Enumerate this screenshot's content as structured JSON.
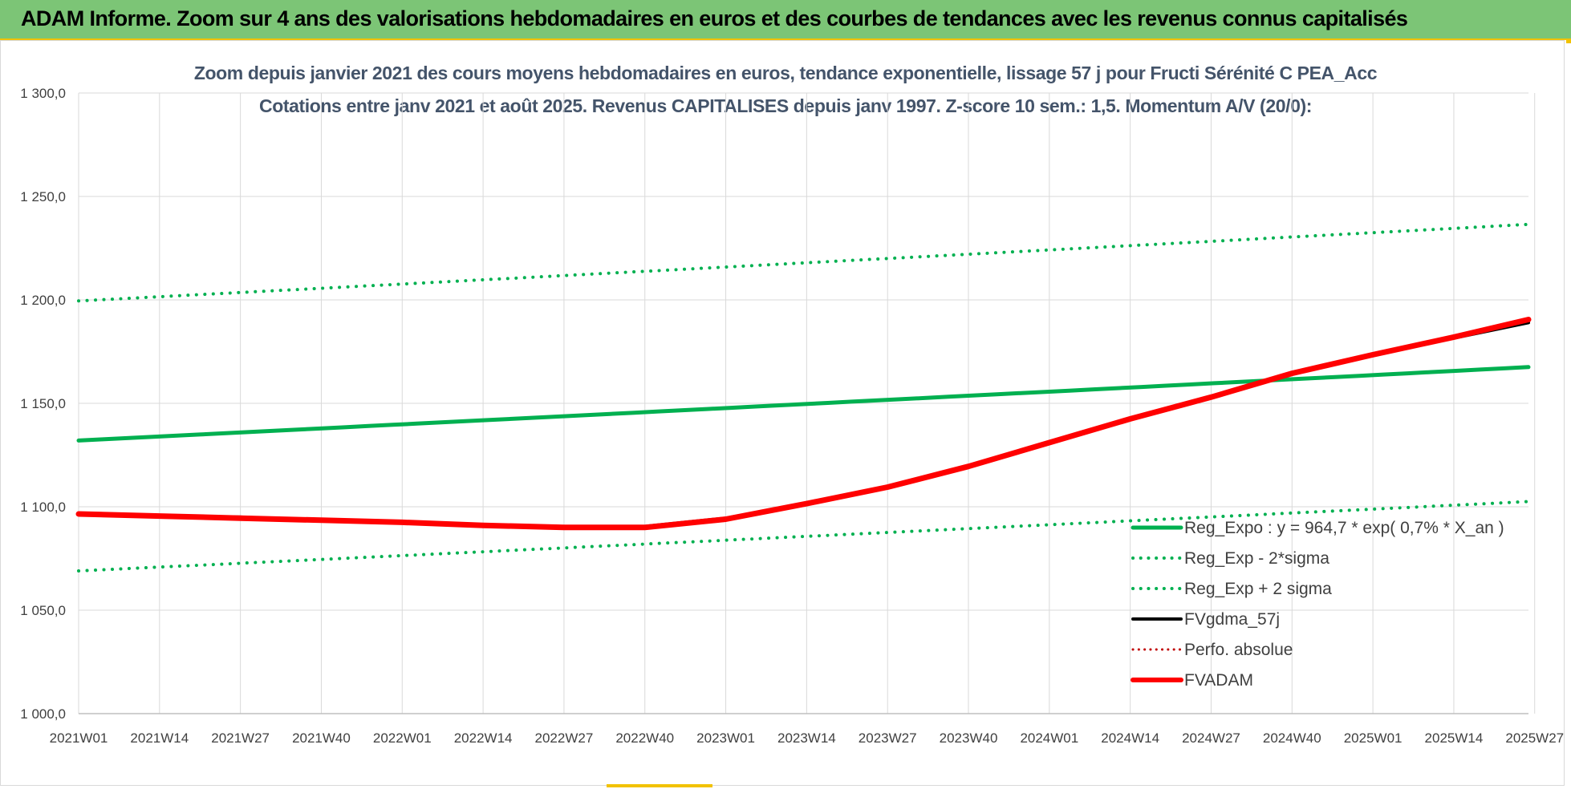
{
  "banner": {
    "text": "ADAM Informe. Zoom sur 4 ans des valorisations hebdomadaires en euros et des courbes de tendances avec les revenus connus capitalisés"
  },
  "colors": {
    "banner_bg": "#7cc576",
    "green": "#00b050",
    "red": "#ff0000",
    "black": "#000000",
    "dotted_red": "#c00000",
    "grid": "#d9d9d9",
    "title": "#44546a"
  },
  "chart_data": {
    "type": "line",
    "title": "Zoom depuis janvier 2021 des cours moyens hebdomadaires en euros, tendance exponentielle, lissage 57 j pour Fructi Sérénité C PEA_Acc",
    "subtitle": "Cotations entre janv 2021 et août 2025. Revenus CAPITALISES depuis janv 1997. Z-score 10 sem.: 1,5. Momentum A/V (20/0):",
    "x_tick_labels": [
      "2021W01",
      "2021W14",
      "2021W27",
      "2021W40",
      "2022W01",
      "2022W14",
      "2022W27",
      "2022W40",
      "2023W01",
      "2023W14",
      "2023W27",
      "2023W40",
      "2024W01",
      "2024W14",
      "2024W27",
      "2024W40",
      "2025W01",
      "2025W14",
      "2025W27"
    ],
    "y_tick_labels": [
      "1 000,0",
      "1 050,0",
      "1 100,0",
      "1 150,0",
      "1 200,0",
      "1 250,0",
      "1 300,0"
    ],
    "ylim": [
      1000,
      1300
    ],
    "x_range_weeks": [
      0,
      233
    ],
    "grid": true,
    "legend_position": "bottom-right",
    "series": [
      {
        "name": "Reg_Expo : y = 964,7 * exp( 0,7% *  X_an )",
        "color": "#00b050",
        "style": "solid",
        "width": 5,
        "x": [
          0,
          233
        ],
        "y": [
          1132.0,
          1167.5
        ]
      },
      {
        "name": "Reg_Exp - 2*sigma",
        "color": "#00b050",
        "style": "dotted",
        "width": 4,
        "x": [
          0,
          233
        ],
        "y": [
          1069.0,
          1102.5
        ]
      },
      {
        "name": "Reg_Exp + 2 sigma",
        "color": "#00b050",
        "style": "dotted",
        "width": 4,
        "x": [
          0,
          233
        ],
        "y": [
          1199.5,
          1236.5
        ]
      },
      {
        "name": "FVgdma_57j",
        "color": "#000000",
        "style": "solid",
        "width": 4,
        "x": [
          0,
          13,
          26,
          39,
          52,
          65,
          78,
          91,
          104,
          117,
          130,
          143,
          156,
          169,
          182,
          195,
          208,
          221,
          233
        ],
        "y": [
          1096.5,
          1095.5,
          1095.0,
          1093.5,
          1092.5,
          1091.0,
          1090.0,
          1090.5,
          1094.5,
          1101.5,
          1109.5,
          1119.5,
          1131.0,
          1142.5,
          1153.0,
          1164.5,
          1173.5,
          1181.5,
          1189.0
        ]
      },
      {
        "name": "Perfo. absolue",
        "color": "#c00000",
        "style": "dotted",
        "width": 3,
        "x": [],
        "y": []
      },
      {
        "name": "FVADAM",
        "color": "#ff0000",
        "style": "solid",
        "width": 7,
        "x": [
          0,
          13,
          26,
          39,
          52,
          65,
          78,
          91,
          104,
          117,
          130,
          143,
          156,
          169,
          182,
          195,
          208,
          221,
          233
        ],
        "y": [
          1096.5,
          1095.5,
          1094.5,
          1093.5,
          1092.5,
          1091.0,
          1090.0,
          1090.0,
          1094.0,
          1101.5,
          1109.5,
          1119.5,
          1131.0,
          1142.5,
          1153.0,
          1164.5,
          1173.5,
          1182.0,
          1190.5
        ]
      }
    ]
  }
}
